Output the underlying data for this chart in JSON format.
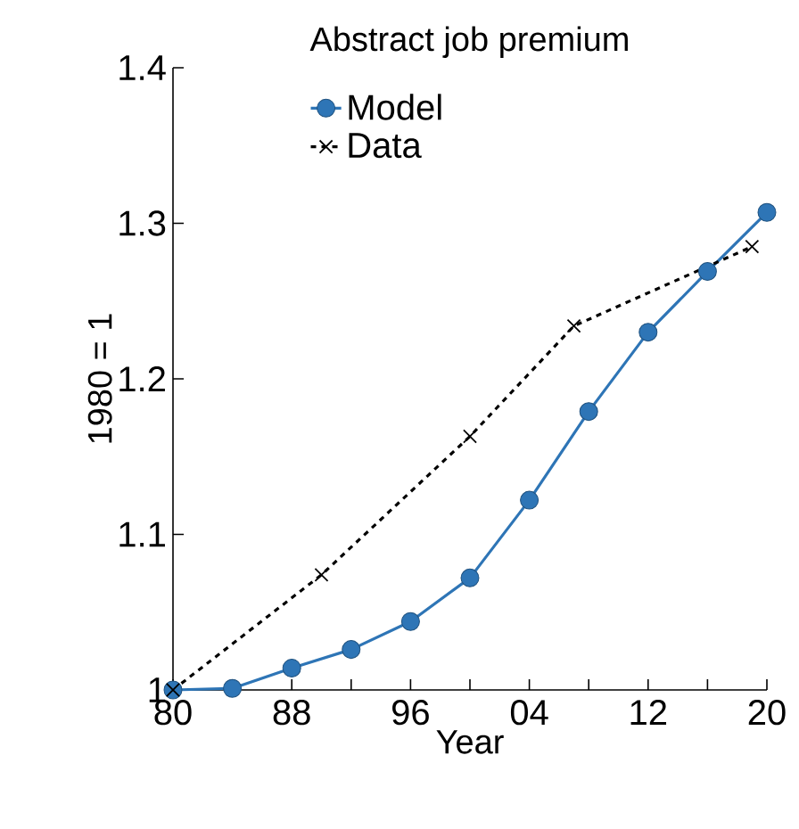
{
  "chart_data": {
    "type": "line",
    "title": "Abstract job premium",
    "xlabel": "Year",
    "ylabel": "1980 = 1",
    "xlim": [
      1980,
      2020
    ],
    "xticks": [
      {
        "value": 1980,
        "label": "80"
      },
      {
        "value": 1984,
        "label": null
      },
      {
        "value": 1988,
        "label": "88"
      },
      {
        "value": 1992,
        "label": null
      },
      {
        "value": 1996,
        "label": "96"
      },
      {
        "value": 2000,
        "label": null
      },
      {
        "value": 2004,
        "label": "04"
      },
      {
        "value": 2008,
        "label": null
      },
      {
        "value": 2012,
        "label": "12"
      },
      {
        "value": 2016,
        "label": null
      },
      {
        "value": 2020,
        "label": "20"
      }
    ],
    "ylim": [
      1,
      1.4
    ],
    "yticks": [
      1,
      1.1,
      1.2,
      1.3,
      1.4
    ],
    "legend": "top left",
    "grid": false,
    "series": [
      {
        "name": "Model",
        "color": "#2e75b6",
        "marker": "circle",
        "line_style": "solid",
        "x": [
          1980,
          1984,
          1988,
          1992,
          1996,
          2000,
          2004,
          2008,
          2012,
          2016,
          2020
        ],
        "values": [
          1.0,
          1.001,
          1.014,
          1.026,
          1.044,
          1.072,
          1.122,
          1.179,
          1.23,
          1.269,
          1.307
        ]
      },
      {
        "name": "Data",
        "color": "#000000",
        "marker": "cross",
        "line_style": "dashed",
        "x": [
          1980,
          1990,
          2000,
          2007,
          2019
        ],
        "values": [
          1.0,
          1.074,
          1.163,
          1.234,
          1.285
        ]
      }
    ]
  }
}
